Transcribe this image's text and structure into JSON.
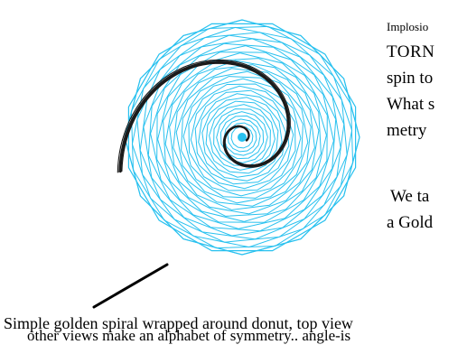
{
  "side_text": {
    "line_1": "Implosio",
    "line_2": "TORN",
    "line_3": "spin to",
    "line_4": "What s",
    "line_5": "metry",
    "line_6": "We ta",
    "line_7": "a Gold"
  },
  "caption": {
    "line_1": "Simple golden spiral wrapped around donut, top view",
    "line_2": "other views make an alphabet of symmetry..  angle-is"
  },
  "colors": {
    "rosette": "#29c1ef",
    "spiral": "#1a1a1a",
    "background": "#ffffff"
  }
}
